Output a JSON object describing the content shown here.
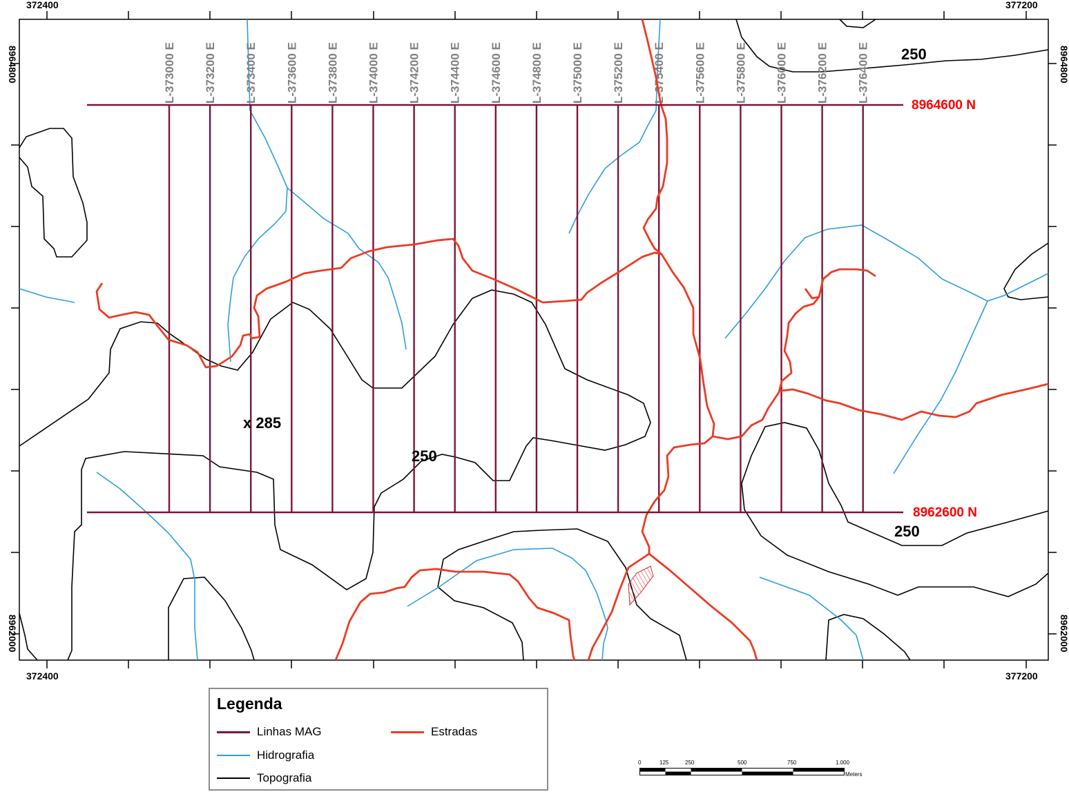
{
  "map": {
    "frame_coords": {
      "top_left_easting": "372400",
      "top_right_easting": "377200",
      "bottom_left_easting": "372400",
      "bottom_right_easting": "377200",
      "left_top_northing": "8964800",
      "left_bottom_northing": "8962000",
      "right_top_northing": "8964800",
      "right_bottom_northing": "8962000"
    },
    "survey_lines": [
      "L-373000 E",
      "L-373200 E",
      "L-373400 E",
      "L-373600 E",
      "L-373800 E",
      "L-374000 E",
      "L-374200 E",
      "L-374400 E",
      "L-374600 E",
      "L-374800 E",
      "L-375000 E",
      "L-375200 E",
      "L-375400 E",
      "L-375600 E",
      "L-375800 E",
      "L-376000 E",
      "L-376200 E",
      "L-376400 E"
    ],
    "north_lines": {
      "top": "8964600 N",
      "bottom": "8962600 N"
    },
    "contour_labels": [
      "250",
      "250",
      "250"
    ],
    "spot_height": "x 285",
    "colors": {
      "survey_lines": "#7b1437",
      "hydrography": "#2b9de0",
      "roads": "#ec3b23",
      "topography": "#000000",
      "north_labels": "#ff0000",
      "line_labels": "#808080"
    }
  },
  "legend": {
    "title": "Legenda",
    "items": [
      {
        "label": "Linhas MAG",
        "color": "#7b1437"
      },
      {
        "label": "Estradas",
        "color": "#ec3b23"
      },
      {
        "label": "Hidrografia",
        "color": "#2b9de0"
      },
      {
        "label": "Topografia",
        "color": "#000000"
      }
    ]
  },
  "scale_bar": {
    "ticks": [
      "0",
      "125",
      "250",
      "500",
      "750",
      "1.000"
    ],
    "units": "Meters"
  }
}
